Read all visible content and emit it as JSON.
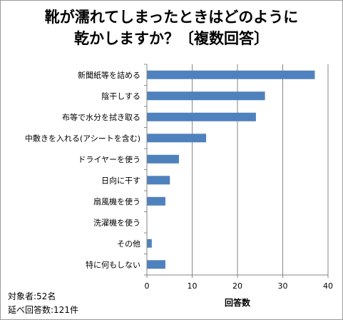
{
  "chart_data": {
    "type": "bar",
    "orientation": "horizontal",
    "title_lines": [
      "靴が濡れてしまったときはどのように",
      "乾かしますか？〔複数回答〕"
    ],
    "categories": [
      "新聞紙等を詰める",
      "陰干しする",
      "布等で水分を拭き取る",
      "中敷きを入れる(アシートを含む)",
      "ドライヤーを使う",
      "日向に干す",
      "扇風機を使う",
      "洗濯機を使う",
      "その他",
      "特に何もしない"
    ],
    "values": [
      37,
      26,
      24,
      13,
      7,
      5,
      4,
      0,
      1,
      4
    ],
    "xlabel": "回答数",
    "xlim": [
      0,
      40
    ],
    "x_ticks": [
      "0",
      "10",
      "20",
      "30",
      "40"
    ],
    "grid": true,
    "bar_color": "#4f81bd"
  },
  "notes": {
    "respondents": "対象者:52名",
    "total_answers": "延べ回答数:121件"
  }
}
